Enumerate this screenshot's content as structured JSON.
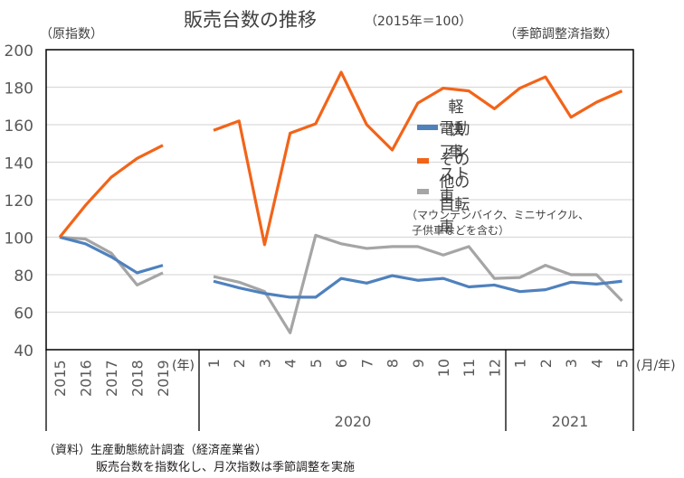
{
  "header": {
    "title": "販売台数の推移",
    "subtitle": "（2015年＝100）",
    "left_unit": "（原指数）",
    "right_unit": "（季節調整済指数）"
  },
  "legend": {
    "items": [
      {
        "label": "軽快車",
        "color": "#4F81BD"
      },
      {
        "label": "電動アシスト車",
        "color": "#F26419"
      },
      {
        "label": "その他の自転車",
        "color": "#A5A5A5"
      }
    ],
    "note_line1": "（マウンテンバイク、ミニサイクル、",
    "note_line2": "子供車などを含む）"
  },
  "source": {
    "line1": "（資料）生産動態統計調査（経済産業省）",
    "line2": "販売台数を指数化し、月次指数は季節調整を実施"
  },
  "chart_data": {
    "type": "line",
    "title": "販売台数の推移",
    "subtitle": "（2015年＝100）",
    "ylabel_left": "（原指数）",
    "ylabel_right": "（季節調整済指数）",
    "ylim": [
      40,
      200
    ],
    "yticks": [
      "40",
      "60",
      "80",
      "100",
      "120",
      "140",
      "160",
      "180",
      "200"
    ],
    "grid": true,
    "legend_position": "right-center",
    "annual": {
      "unit_label": "(年)",
      "categories": [
        "2015",
        "2016",
        "2017",
        "2018",
        "2019"
      ],
      "series": [
        {
          "name": "軽快車",
          "values": [
            100,
            96.5,
            89.5,
            81,
            85
          ]
        },
        {
          "name": "電動アシスト車",
          "values": [
            100,
            117,
            132,
            142,
            149
          ]
        },
        {
          "name": "その他の自転車",
          "values": [
            100,
            99,
            91.5,
            74.5,
            81
          ]
        }
      ]
    },
    "monthly": {
      "unit_label": "(月/年)",
      "year_groups": [
        {
          "year": "2020",
          "months": [
            "1",
            "2",
            "3",
            "4",
            "5",
            "6",
            "7",
            "8",
            "9",
            "10",
            "11",
            "12"
          ]
        },
        {
          "year": "2021",
          "months": [
            "1",
            "2",
            "3",
            "4",
            "5"
          ]
        }
      ],
      "series": [
        {
          "name": "軽快車",
          "values": [
            76.5,
            73,
            70,
            68,
            68,
            78,
            75.5,
            79.5,
            77,
            78,
            73.5,
            74.5,
            71,
            72,
            76,
            75,
            76.5
          ]
        },
        {
          "name": "電動アシスト車",
          "values": [
            157,
            162,
            96,
            155.5,
            160.5,
            188,
            160,
            146.5,
            171.5,
            179.5,
            178,
            168.5,
            179.5,
            185.5,
            164,
            172,
            178
          ]
        },
        {
          "name": "その他の自転車",
          "values": [
            79,
            76,
            71,
            49,
            101,
            96.5,
            94,
            95,
            95,
            90.5,
            95,
            78,
            78.5,
            85,
            80,
            80,
            66
          ]
        }
      ]
    }
  }
}
